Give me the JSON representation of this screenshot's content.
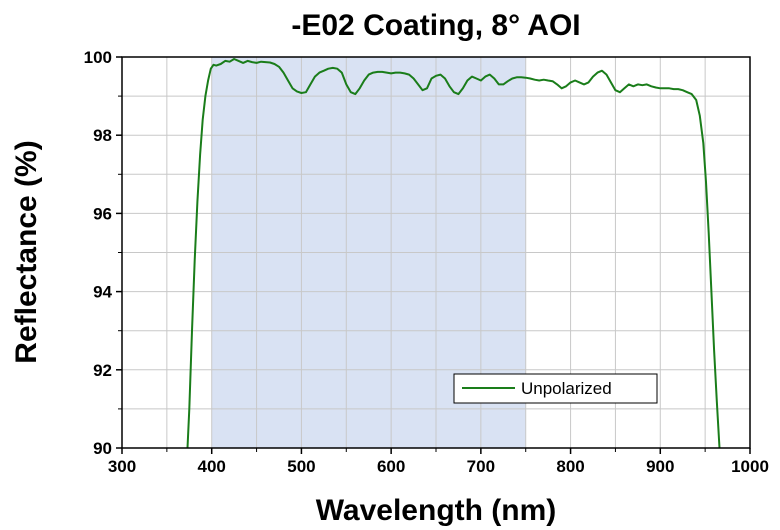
{
  "chart_data": {
    "type": "line",
    "title": "-E02 Coating, 8° AOI",
    "xlabel": "Wavelength (nm)",
    "ylabel": "Reflectance (%)",
    "xlim": [
      300,
      1000
    ],
    "ylim": [
      90,
      100
    ],
    "x_ticks": [
      "300",
      "400",
      "500",
      "600",
      "700",
      "800",
      "900",
      "1000"
    ],
    "y_ticks": [
      "90",
      "92",
      "94",
      "96",
      "98",
      "100"
    ],
    "grid": true,
    "legend_position": "bottom-right",
    "shaded_region": {
      "x_start": 400,
      "x_end": 750,
      "color": "#d9e2f3"
    },
    "series": [
      {
        "name": "Unpolarized",
        "color": "#1a7d1a",
        "points": [
          [
            373,
            90.0
          ],
          [
            375,
            91.0
          ],
          [
            378,
            93.0
          ],
          [
            381,
            94.8
          ],
          [
            384,
            96.3
          ],
          [
            387,
            97.5
          ],
          [
            390,
            98.4
          ],
          [
            393,
            99.0
          ],
          [
            396,
            99.4
          ],
          [
            399,
            99.7
          ],
          [
            402,
            99.8
          ],
          [
            405,
            99.78
          ],
          [
            410,
            99.82
          ],
          [
            415,
            99.9
          ],
          [
            420,
            99.88
          ],
          [
            425,
            99.95
          ],
          [
            430,
            99.9
          ],
          [
            435,
            99.85
          ],
          [
            440,
            99.9
          ],
          [
            445,
            99.87
          ],
          [
            450,
            99.85
          ],
          [
            455,
            99.88
          ],
          [
            460,
            99.87
          ],
          [
            465,
            99.86
          ],
          [
            470,
            99.82
          ],
          [
            475,
            99.75
          ],
          [
            480,
            99.6
          ],
          [
            485,
            99.4
          ],
          [
            490,
            99.2
          ],
          [
            495,
            99.12
          ],
          [
            500,
            99.08
          ],
          [
            505,
            99.1
          ],
          [
            510,
            99.3
          ],
          [
            515,
            99.5
          ],
          [
            520,
            99.6
          ],
          [
            525,
            99.65
          ],
          [
            530,
            99.7
          ],
          [
            535,
            99.72
          ],
          [
            540,
            99.7
          ],
          [
            545,
            99.6
          ],
          [
            550,
            99.3
          ],
          [
            555,
            99.1
          ],
          [
            560,
            99.05
          ],
          [
            565,
            99.2
          ],
          [
            570,
            99.4
          ],
          [
            575,
            99.55
          ],
          [
            580,
            99.6
          ],
          [
            585,
            99.62
          ],
          [
            590,
            99.62
          ],
          [
            595,
            99.6
          ],
          [
            600,
            99.58
          ],
          [
            605,
            99.6
          ],
          [
            610,
            99.6
          ],
          [
            615,
            99.58
          ],
          [
            620,
            99.55
          ],
          [
            625,
            99.45
          ],
          [
            630,
            99.3
          ],
          [
            635,
            99.15
          ],
          [
            640,
            99.2
          ],
          [
            645,
            99.45
          ],
          [
            650,
            99.52
          ],
          [
            655,
            99.55
          ],
          [
            660,
            99.45
          ],
          [
            665,
            99.25
          ],
          [
            670,
            99.1
          ],
          [
            675,
            99.05
          ],
          [
            680,
            99.2
          ],
          [
            685,
            99.4
          ],
          [
            690,
            99.5
          ],
          [
            695,
            99.45
          ],
          [
            700,
            99.4
          ],
          [
            705,
            99.5
          ],
          [
            710,
            99.55
          ],
          [
            715,
            99.45
          ],
          [
            720,
            99.3
          ],
          [
            725,
            99.3
          ],
          [
            730,
            99.38
          ],
          [
            735,
            99.45
          ],
          [
            740,
            99.48
          ],
          [
            745,
            99.48
          ],
          [
            750,
            99.47
          ],
          [
            755,
            99.45
          ],
          [
            760,
            99.42
          ],
          [
            765,
            99.4
          ],
          [
            770,
            99.42
          ],
          [
            775,
            99.4
          ],
          [
            780,
            99.38
          ],
          [
            785,
            99.3
          ],
          [
            790,
            99.2
          ],
          [
            795,
            99.25
          ],
          [
            800,
            99.35
          ],
          [
            805,
            99.4
          ],
          [
            810,
            99.35
          ],
          [
            815,
            99.3
          ],
          [
            820,
            99.35
          ],
          [
            825,
            99.5
          ],
          [
            830,
            99.6
          ],
          [
            835,
            99.65
          ],
          [
            840,
            99.55
          ],
          [
            845,
            99.35
          ],
          [
            850,
            99.15
          ],
          [
            855,
            99.1
          ],
          [
            860,
            99.2
          ],
          [
            865,
            99.3
          ],
          [
            870,
            99.25
          ],
          [
            875,
            99.3
          ],
          [
            880,
            99.28
          ],
          [
            885,
            99.3
          ],
          [
            890,
            99.25
          ],
          [
            895,
            99.22
          ],
          [
            900,
            99.2
          ],
          [
            905,
            99.2
          ],
          [
            910,
            99.2
          ],
          [
            915,
            99.18
          ],
          [
            920,
            99.18
          ],
          [
            925,
            99.15
          ],
          [
            930,
            99.1
          ],
          [
            935,
            99.05
          ],
          [
            940,
            98.9
          ],
          [
            944,
            98.5
          ],
          [
            948,
            97.8
          ],
          [
            951,
            96.8
          ],
          [
            954,
            95.5
          ],
          [
            957,
            94.0
          ],
          [
            960,
            92.5
          ],
          [
            963,
            91.2
          ],
          [
            966,
            90.0
          ]
        ]
      }
    ]
  }
}
